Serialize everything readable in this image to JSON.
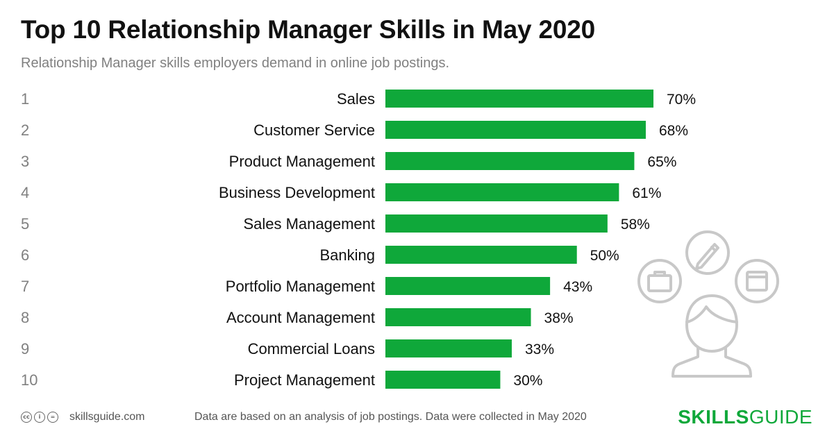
{
  "title": "Top 10 Relationship Manager Skills in May 2020",
  "subtitle": "Relationship Manager skills employers demand in online job postings.",
  "colors": {
    "bar": "#0fa83a",
    "brand": "#0fa83a",
    "illustration": "#c8c8c8"
  },
  "chart_data": {
    "type": "bar",
    "orientation": "horizontal",
    "ranks": [
      "1",
      "2",
      "3",
      "4",
      "5",
      "6",
      "7",
      "8",
      "9",
      "10"
    ],
    "categories": [
      "Sales",
      "Customer Service",
      "Product Management",
      "Business Development",
      "Sales Management",
      "Banking",
      "Portfolio Management",
      "Account Management",
      "Commercial Loans",
      "Project Management"
    ],
    "values": [
      70,
      68,
      65,
      61,
      58,
      50,
      43,
      38,
      33,
      30
    ],
    "value_labels": [
      "70%",
      "68%",
      "65%",
      "61%",
      "58%",
      "50%",
      "43%",
      "38%",
      "33%",
      "30%"
    ],
    "xlim": [
      0,
      100
    ],
    "grid": false
  },
  "footer": {
    "license_icons": [
      "cc-icon",
      "by-icon",
      "equals-icon"
    ],
    "site": "skillsguide.com",
    "note": "Data are based on an analysis of job postings. Data were collected in May 2020"
  },
  "brand": {
    "part1": "SKILLS",
    "part2": "GUIDE"
  }
}
